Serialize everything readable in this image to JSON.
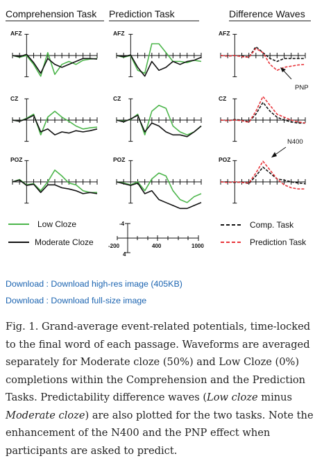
{
  "panel_titles": [
    "Comprehension Task",
    "Prediction Task",
    "Difference Waves"
  ],
  "electrode_labels": [
    "AFZ",
    "CZ",
    "POZ"
  ],
  "colors": {
    "low_cloze": "#4bb54a",
    "moderate_cloze": "#111111",
    "comp_task_diff": "#111111",
    "prediction_task_diff": "#e8343a"
  },
  "annotations": {
    "pnp": "PNP",
    "n400": "N400"
  },
  "legend": {
    "low_cloze": "Low Cloze",
    "moderate_cloze": "Moderate Cloze",
    "comp_task": "Comp. Task",
    "prediction_task": "Prediction Task"
  },
  "scale": {
    "y_top": "-4",
    "y_bottom": "4",
    "x_start": "-200",
    "x_mid": "400",
    "x_end": "1000"
  },
  "links": {
    "high_res": "Download : Download high-res image (405KB)",
    "full_size": "Download : Download full-size image"
  },
  "caption": {
    "p1": "Fig. 1. Grand-average event-related potentials, time-locked to the final word of each passage. Waveforms are averaged separately for Moderate cloze (50%) and Low Cloze (0%) completions within the Comprehension and the Prediction Tasks. Predictability difference waves (",
    "em1": "Low cloze",
    "p2": " minus ",
    "em2": "Moderate cloze",
    "p3": ") are also plotted for the two tasks. Note the enhancement of the N400 and the PNP effect when participants are asked to predict."
  },
  "chart_data": {
    "type": "line",
    "x": [
      -200,
      -100,
      0,
      100,
      200,
      300,
      400,
      500,
      600,
      700,
      800,
      900,
      1000
    ],
    "xlabel": "",
    "ylabel": "",
    "xlim": [
      -200,
      1000
    ],
    "ylim": [
      -4,
      4
    ],
    "y_axis_inverted": true,
    "panels": [
      {
        "task": "Comprehension Task",
        "electrode": "AFZ",
        "series": [
          {
            "name": "Low Cloze",
            "values": [
              0,
              0.3,
              0,
              1.5,
              3.5,
              -0.5,
              3.2,
              1.5,
              1.0,
              1.5,
              0.8,
              0.6,
              0.5
            ]
          },
          {
            "name": "Moderate Cloze",
            "values": [
              0,
              0.2,
              -0.2,
              1.2,
              3.0,
              0.5,
              1.5,
              2.0,
              1.5,
              1.0,
              0.5,
              0.5,
              0.6
            ]
          }
        ]
      },
      {
        "task": "Comprehension Task",
        "electrode": "CZ",
        "series": [
          {
            "name": "Low Cloze",
            "values": [
              0,
              0.2,
              -0.3,
              -1.0,
              2.5,
              -0.5,
              -1.5,
              -0.5,
              0.2,
              1.0,
              1.5,
              1.3,
              1.2
            ]
          },
          {
            "name": "Moderate Cloze",
            "values": [
              0,
              0.2,
              -0.2,
              -0.8,
              2.0,
              1.5,
              2.5,
              2.0,
              2.2,
              1.8,
              2.0,
              1.8,
              1.5
            ]
          }
        ]
      },
      {
        "task": "Comprehension Task",
        "electrode": "POZ",
        "series": [
          {
            "name": "Low Cloze",
            "values": [
              0,
              -0.4,
              0.5,
              0.3,
              1.5,
              0,
              -2.0,
              -1.0,
              0.2,
              0.5,
              1.5,
              1.8,
              1.8
            ]
          },
          {
            "name": "Moderate Cloze",
            "values": [
              0,
              -0.3,
              0.6,
              0.4,
              1.8,
              0.5,
              0.5,
              1.0,
              1.2,
              1.5,
              2.0,
              1.8,
              2.0
            ]
          }
        ]
      },
      {
        "task": "Prediction Task",
        "electrode": "AFZ",
        "series": [
          {
            "name": "Low Cloze",
            "values": [
              0,
              0.3,
              0,
              2.5,
              3.0,
              -2.0,
              -2.0,
              -0.5,
              1.0,
              1.0,
              1.2,
              0.8,
              1.0
            ]
          },
          {
            "name": "Moderate Cloze",
            "values": [
              0,
              0.2,
              -0.1,
              2.0,
              3.5,
              1.0,
              2.5,
              2.0,
              1.0,
              1.5,
              1.0,
              0.8,
              0.3
            ]
          }
        ]
      },
      {
        "task": "Prediction Task",
        "electrode": "CZ",
        "series": [
          {
            "name": "Low Cloze",
            "values": [
              0,
              0.2,
              -0.1,
              -1.0,
              2.5,
              -1.5,
              -2.5,
              -2.0,
              1.0,
              2.0,
              2.5,
              2.0,
              1.0
            ]
          },
          {
            "name": "Moderate Cloze",
            "values": [
              0,
              0.3,
              -0.2,
              -0.8,
              2.0,
              0.5,
              1.0,
              2.0,
              2.5,
              2.5,
              2.8,
              2.0,
              1.0
            ]
          }
        ]
      },
      {
        "task": "Prediction Task",
        "electrode": "POZ",
        "series": [
          {
            "name": "Low Cloze",
            "values": [
              0,
              0.2,
              0.5,
              0,
              1.5,
              -0.5,
              -1.5,
              -1.0,
              1.5,
              3.0,
              3.5,
              2.5,
              2.0
            ]
          },
          {
            "name": "Moderate Cloze",
            "values": [
              0,
              0.3,
              0.6,
              0.2,
              2.0,
              1.5,
              3.0,
              3.5,
              4.0,
              4.5,
              4.5,
              4.0,
              3.5
            ]
          }
        ]
      },
      {
        "task": "Difference Waves",
        "electrode": "AFZ",
        "series": [
          {
            "name": "Comp. Task",
            "values": [
              0,
              0.1,
              0,
              0.1,
              0.3,
              -1.5,
              -0.5,
              0.5,
              1.0,
              0.5,
              0.5,
              0.5,
              0.5
            ]
          },
          {
            "name": "Prediction Task",
            "values": [
              0,
              0.1,
              0,
              0.2,
              0.3,
              -1.2,
              -0.5,
              1.5,
              2.5,
              2.0,
              1.8,
              1.6,
              1.5
            ]
          }
        ]
      },
      {
        "task": "Difference Waves",
        "electrode": "CZ",
        "series": [
          {
            "name": "Comp. Task",
            "values": [
              0,
              0.1,
              -0.1,
              0,
              0.3,
              -1.0,
              -3.0,
              -1.5,
              -0.5,
              0,
              0.3,
              0.5,
              0.5
            ]
          },
          {
            "name": "Prediction Task",
            "values": [
              0,
              0.1,
              0,
              0.1,
              0.4,
              -1.5,
              -4.0,
              -2.5,
              -1.0,
              -0.5,
              0,
              0.3,
              0.5
            ]
          }
        ]
      },
      {
        "task": "Difference Waves",
        "electrode": "POZ",
        "series": [
          {
            "name": "Comp. Task",
            "values": [
              0,
              0,
              0.1,
              0,
              0.3,
              -1.0,
              -2.5,
              -1.5,
              -0.5,
              -0.3,
              0,
              0.2,
              0.3
            ]
          },
          {
            "name": "Prediction Task",
            "values": [
              0,
              0.1,
              0,
              0.1,
              0.2,
              -1.5,
              -3.5,
              -2.0,
              -0.5,
              0.5,
              1.0,
              1.2,
              1.2
            ]
          }
        ]
      }
    ]
  }
}
